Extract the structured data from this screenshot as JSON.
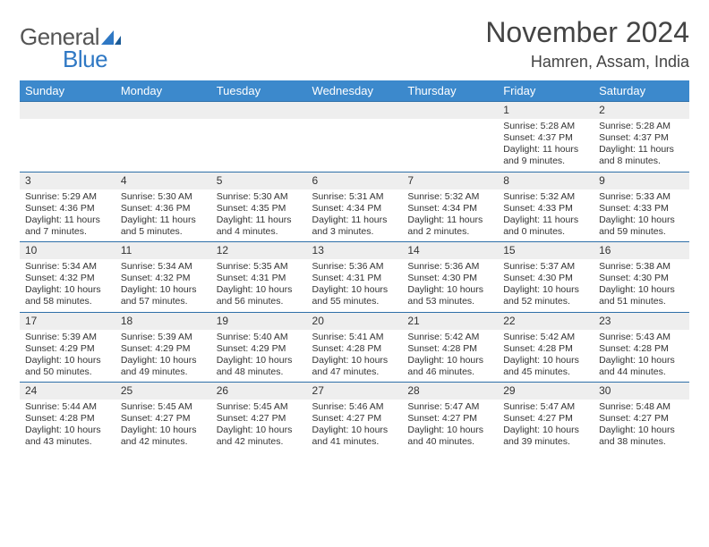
{
  "logo": {
    "general": "General",
    "blue": "Blue"
  },
  "title": "November 2024",
  "location": "Hamren, Assam, India",
  "colors": {
    "header_bg": "#3c89cc",
    "header_text": "#ffffff",
    "rule": "#2e6fa8",
    "daynum_bg": "#eeeeee",
    "body_text": "#333333",
    "logo_blue": "#2f78c4",
    "logo_gray": "#555555",
    "page_bg": "#ffffff"
  },
  "weekdays": [
    "Sunday",
    "Monday",
    "Tuesday",
    "Wednesday",
    "Thursday",
    "Friday",
    "Saturday"
  ],
  "weeks": [
    [
      null,
      null,
      null,
      null,
      null,
      {
        "d": "1",
        "sr": "Sunrise: 5:28 AM",
        "ss": "Sunset: 4:37 PM",
        "dl1": "Daylight: 11 hours",
        "dl2": "and 9 minutes."
      },
      {
        "d": "2",
        "sr": "Sunrise: 5:28 AM",
        "ss": "Sunset: 4:37 PM",
        "dl1": "Daylight: 11 hours",
        "dl2": "and 8 minutes."
      }
    ],
    [
      {
        "d": "3",
        "sr": "Sunrise: 5:29 AM",
        "ss": "Sunset: 4:36 PM",
        "dl1": "Daylight: 11 hours",
        "dl2": "and 7 minutes."
      },
      {
        "d": "4",
        "sr": "Sunrise: 5:30 AM",
        "ss": "Sunset: 4:36 PM",
        "dl1": "Daylight: 11 hours",
        "dl2": "and 5 minutes."
      },
      {
        "d": "5",
        "sr": "Sunrise: 5:30 AM",
        "ss": "Sunset: 4:35 PM",
        "dl1": "Daylight: 11 hours",
        "dl2": "and 4 minutes."
      },
      {
        "d": "6",
        "sr": "Sunrise: 5:31 AM",
        "ss": "Sunset: 4:34 PM",
        "dl1": "Daylight: 11 hours",
        "dl2": "and 3 minutes."
      },
      {
        "d": "7",
        "sr": "Sunrise: 5:32 AM",
        "ss": "Sunset: 4:34 PM",
        "dl1": "Daylight: 11 hours",
        "dl2": "and 2 minutes."
      },
      {
        "d": "8",
        "sr": "Sunrise: 5:32 AM",
        "ss": "Sunset: 4:33 PM",
        "dl1": "Daylight: 11 hours",
        "dl2": "and 0 minutes."
      },
      {
        "d": "9",
        "sr": "Sunrise: 5:33 AM",
        "ss": "Sunset: 4:33 PM",
        "dl1": "Daylight: 10 hours",
        "dl2": "and 59 minutes."
      }
    ],
    [
      {
        "d": "10",
        "sr": "Sunrise: 5:34 AM",
        "ss": "Sunset: 4:32 PM",
        "dl1": "Daylight: 10 hours",
        "dl2": "and 58 minutes."
      },
      {
        "d": "11",
        "sr": "Sunrise: 5:34 AM",
        "ss": "Sunset: 4:32 PM",
        "dl1": "Daylight: 10 hours",
        "dl2": "and 57 minutes."
      },
      {
        "d": "12",
        "sr": "Sunrise: 5:35 AM",
        "ss": "Sunset: 4:31 PM",
        "dl1": "Daylight: 10 hours",
        "dl2": "and 56 minutes."
      },
      {
        "d": "13",
        "sr": "Sunrise: 5:36 AM",
        "ss": "Sunset: 4:31 PM",
        "dl1": "Daylight: 10 hours",
        "dl2": "and 55 minutes."
      },
      {
        "d": "14",
        "sr": "Sunrise: 5:36 AM",
        "ss": "Sunset: 4:30 PM",
        "dl1": "Daylight: 10 hours",
        "dl2": "and 53 minutes."
      },
      {
        "d": "15",
        "sr": "Sunrise: 5:37 AM",
        "ss": "Sunset: 4:30 PM",
        "dl1": "Daylight: 10 hours",
        "dl2": "and 52 minutes."
      },
      {
        "d": "16",
        "sr": "Sunrise: 5:38 AM",
        "ss": "Sunset: 4:30 PM",
        "dl1": "Daylight: 10 hours",
        "dl2": "and 51 minutes."
      }
    ],
    [
      {
        "d": "17",
        "sr": "Sunrise: 5:39 AM",
        "ss": "Sunset: 4:29 PM",
        "dl1": "Daylight: 10 hours",
        "dl2": "and 50 minutes."
      },
      {
        "d": "18",
        "sr": "Sunrise: 5:39 AM",
        "ss": "Sunset: 4:29 PM",
        "dl1": "Daylight: 10 hours",
        "dl2": "and 49 minutes."
      },
      {
        "d": "19",
        "sr": "Sunrise: 5:40 AM",
        "ss": "Sunset: 4:29 PM",
        "dl1": "Daylight: 10 hours",
        "dl2": "and 48 minutes."
      },
      {
        "d": "20",
        "sr": "Sunrise: 5:41 AM",
        "ss": "Sunset: 4:28 PM",
        "dl1": "Daylight: 10 hours",
        "dl2": "and 47 minutes."
      },
      {
        "d": "21",
        "sr": "Sunrise: 5:42 AM",
        "ss": "Sunset: 4:28 PM",
        "dl1": "Daylight: 10 hours",
        "dl2": "and 46 minutes."
      },
      {
        "d": "22",
        "sr": "Sunrise: 5:42 AM",
        "ss": "Sunset: 4:28 PM",
        "dl1": "Daylight: 10 hours",
        "dl2": "and 45 minutes."
      },
      {
        "d": "23",
        "sr": "Sunrise: 5:43 AM",
        "ss": "Sunset: 4:28 PM",
        "dl1": "Daylight: 10 hours",
        "dl2": "and 44 minutes."
      }
    ],
    [
      {
        "d": "24",
        "sr": "Sunrise: 5:44 AM",
        "ss": "Sunset: 4:28 PM",
        "dl1": "Daylight: 10 hours",
        "dl2": "and 43 minutes."
      },
      {
        "d": "25",
        "sr": "Sunrise: 5:45 AM",
        "ss": "Sunset: 4:27 PM",
        "dl1": "Daylight: 10 hours",
        "dl2": "and 42 minutes."
      },
      {
        "d": "26",
        "sr": "Sunrise: 5:45 AM",
        "ss": "Sunset: 4:27 PM",
        "dl1": "Daylight: 10 hours",
        "dl2": "and 42 minutes."
      },
      {
        "d": "27",
        "sr": "Sunrise: 5:46 AM",
        "ss": "Sunset: 4:27 PM",
        "dl1": "Daylight: 10 hours",
        "dl2": "and 41 minutes."
      },
      {
        "d": "28",
        "sr": "Sunrise: 5:47 AM",
        "ss": "Sunset: 4:27 PM",
        "dl1": "Daylight: 10 hours",
        "dl2": "and 40 minutes."
      },
      {
        "d": "29",
        "sr": "Sunrise: 5:47 AM",
        "ss": "Sunset: 4:27 PM",
        "dl1": "Daylight: 10 hours",
        "dl2": "and 39 minutes."
      },
      {
        "d": "30",
        "sr": "Sunrise: 5:48 AM",
        "ss": "Sunset: 4:27 PM",
        "dl1": "Daylight: 10 hours",
        "dl2": "and 38 minutes."
      }
    ]
  ]
}
